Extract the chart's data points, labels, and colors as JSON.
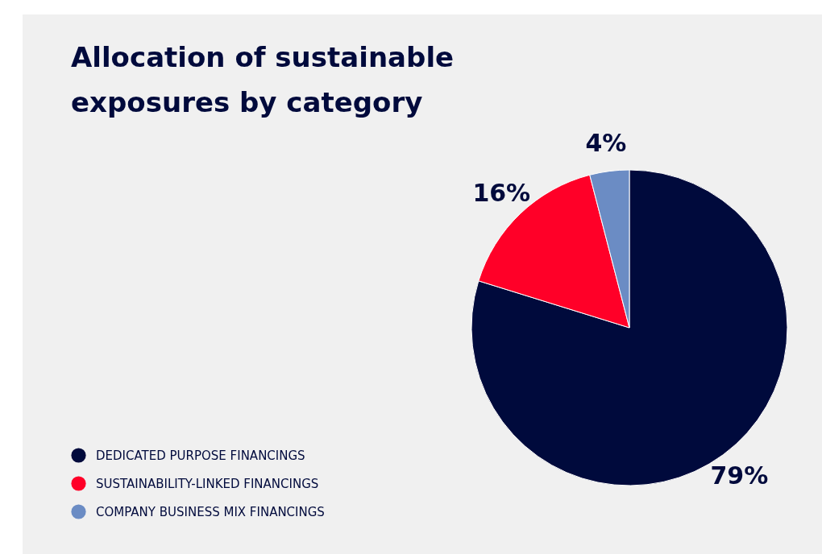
{
  "chart_data": {
    "type": "pie",
    "title": "Allocation of sustainable exposures by category",
    "categories": [
      "DEDICATED PURPOSE FINANCINGS",
      "SUSTAINABILITY-LINKED FINANCINGS",
      "COMPANY BUSINESS MIX FINANCINGS"
    ],
    "values": [
      79,
      16,
      4
    ],
    "value_labels": [
      "79%",
      "16%",
      "4%"
    ],
    "colors": [
      "#000a3c",
      "#ff0028",
      "#6b8cc4"
    ],
    "legend": "bottom left"
  }
}
